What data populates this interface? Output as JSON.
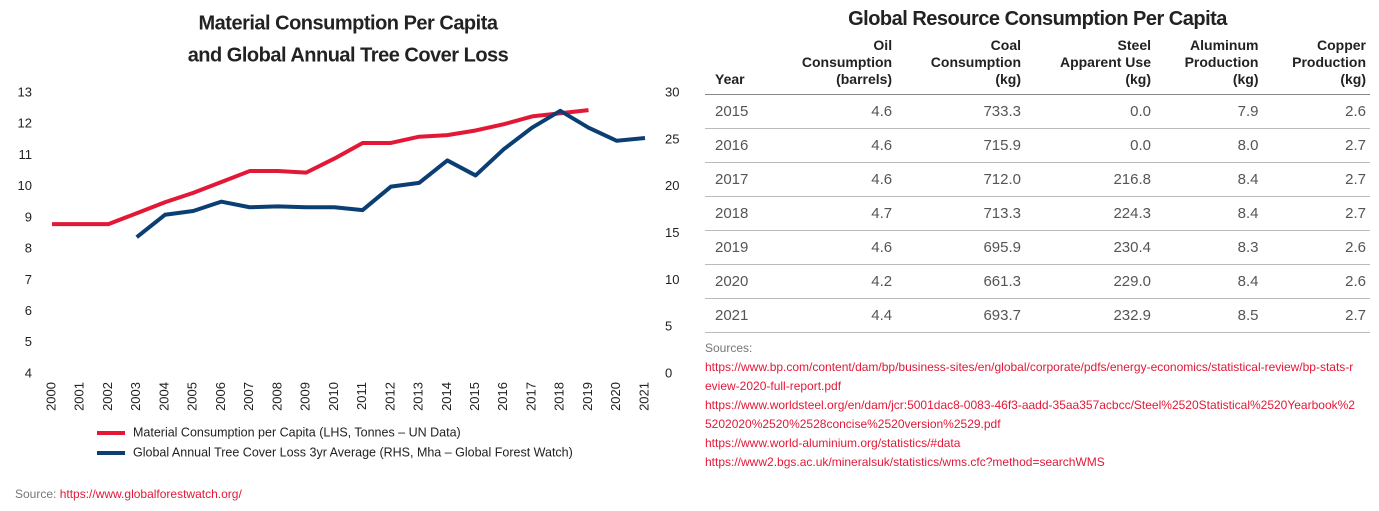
{
  "chart_data": {
    "type": "line",
    "title": [
      "Material Consumption Per Capita",
      "and Global Annual Tree Cover Loss"
    ],
    "x": [
      2000,
      2001,
      2002,
      2003,
      2004,
      2005,
      2006,
      2007,
      2008,
      2009,
      2010,
      2011,
      2012,
      2013,
      2014,
      2015,
      2016,
      2017,
      2018,
      2019,
      2020,
      2021
    ],
    "xlim": [
      2000,
      2021
    ],
    "ylim": [
      4,
      13
    ],
    "yticks": [
      4,
      5,
      6,
      7,
      8,
      9,
      10,
      11,
      12,
      13
    ],
    "y2lim": [
      0,
      30
    ],
    "y2ticks": [
      0,
      5,
      10,
      15,
      20,
      25,
      30
    ],
    "grid": false,
    "series": [
      {
        "name": "Material Consumption per Capita (LHS, Tonnes – UN Data)",
        "color": "#e31837",
        "axis": "y",
        "values": [
          8.8,
          8.8,
          8.8,
          9.15,
          9.5,
          9.8,
          10.15,
          10.5,
          10.5,
          10.45,
          10.9,
          11.4,
          11.4,
          11.6,
          11.65,
          11.8,
          12.0,
          12.25,
          12.35,
          12.45,
          null,
          null
        ]
      },
      {
        "name": "Global Annual Tree Cover Loss 3yr Average (RHS, Mha – Global Forest Watch)",
        "color": "#0b3f73",
        "axis": "y2",
        "values": [
          null,
          null,
          null,
          14.6,
          17.0,
          17.4,
          18.4,
          17.8,
          17.9,
          17.8,
          17.8,
          17.5,
          20.0,
          20.4,
          22.8,
          21.2,
          24.0,
          26.3,
          28.1,
          26.3,
          24.9,
          25.2
        ]
      }
    ],
    "source_label": "Source: ",
    "source_link": "https://www.globalforestwatch.org/"
  },
  "table": {
    "title": "Global Resource Consumption Per Capita",
    "headers": [
      "Year",
      "Oil\nConsumption\n(barrels)",
      "Coal\nConsumption\n(kg)",
      "Steel\nApparent Use\n(kg)",
      "Aluminum\nProduction\n(kg)",
      "Copper\nProduction\n(kg)"
    ],
    "rows": [
      [
        "2015",
        "4.6",
        "733.3",
        "0.0",
        "7.9",
        "2.6"
      ],
      [
        "2016",
        "4.6",
        "715.9",
        "0.0",
        "8.0",
        "2.7"
      ],
      [
        "2017",
        "4.6",
        "712.0",
        "216.8",
        "8.4",
        "2.7"
      ],
      [
        "2018",
        "4.7",
        "713.3",
        "224.3",
        "8.4",
        "2.7"
      ],
      [
        "2019",
        "4.6",
        "695.9",
        "230.4",
        "8.3",
        "2.6"
      ],
      [
        "2020",
        "4.2",
        "661.3",
        "229.0",
        "8.4",
        "2.6"
      ],
      [
        "2021",
        "4.4",
        "693.7",
        "232.9",
        "8.5",
        "2.7"
      ]
    ],
    "sources_label": "Sources:",
    "sources": [
      "https://www.bp.com/content/dam/bp/business-sites/en/global/corporate/pdfs/energy-economics/statistical-review/bp-stats-review-2020-full-report.pdf",
      "https://www.worldsteel.org/en/dam/jcr:5001dac8-0083-46f3-aadd-35aa357acbcc/Steel%2520Statistical%2520Yearbook%25202020%2520%2528concise%2520version%2529.pdf",
      "https://www.world-aluminium.org/statistics/#data",
      "https://www2.bgs.ac.uk/mineralsuk/statistics/wms.cfc?method=searchWMS"
    ]
  }
}
